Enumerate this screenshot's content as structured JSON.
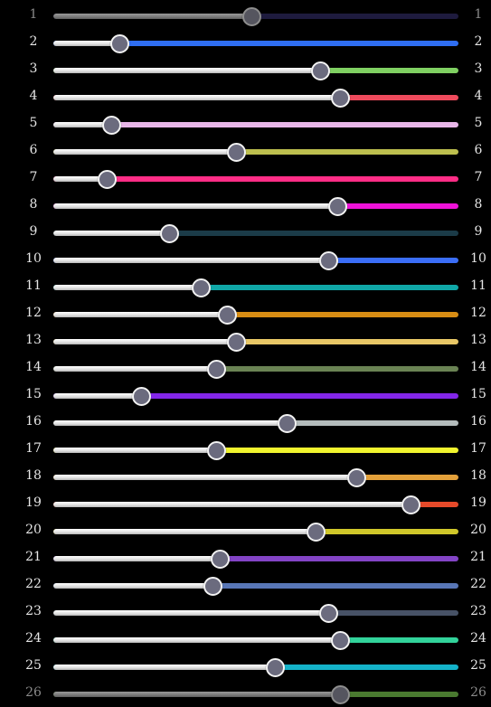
{
  "sliders": [
    {
      "label": "1",
      "value": 0.488,
      "color": "#1e1b3e",
      "state": "dim"
    },
    {
      "label": "2",
      "value": 0.163,
      "color": "#2f6ef2"
    },
    {
      "label": "3",
      "value": 0.658,
      "color": "#7fd062"
    },
    {
      "label": "4",
      "value": 0.708,
      "color": "#ee4a5c"
    },
    {
      "label": "5",
      "value": 0.143,
      "color": "#e8b6e8"
    },
    {
      "label": "6",
      "value": 0.45,
      "color": "#bdbf4e"
    },
    {
      "label": "7",
      "value": 0.132,
      "color": "#ff2d86"
    },
    {
      "label": "8",
      "value": 0.7,
      "color": "#ee12d8"
    },
    {
      "label": "9",
      "value": 0.286,
      "color": "#1b3b48"
    },
    {
      "label": "10",
      "value": 0.679,
      "color": "#3b6ef7"
    },
    {
      "label": "11",
      "value": 0.364,
      "color": "#10a7a7"
    },
    {
      "label": "12",
      "value": 0.429,
      "color": "#d88d14"
    },
    {
      "label": "13",
      "value": 0.45,
      "color": "#e8c766"
    },
    {
      "label": "14",
      "value": 0.402,
      "color": "#6a8354"
    },
    {
      "label": "15",
      "value": 0.217,
      "color": "#8326e8"
    },
    {
      "label": "16",
      "value": 0.576,
      "color": "#b4bcbc"
    },
    {
      "label": "17",
      "value": 0.402,
      "color": "#f1f52e"
    },
    {
      "label": "18",
      "value": 0.748,
      "color": "#e3a03a"
    },
    {
      "label": "19",
      "value": 0.882,
      "color": "#e64a2a"
    },
    {
      "label": "20",
      "value": 0.648,
      "color": "#d0c72a"
    },
    {
      "label": "21",
      "value": 0.411,
      "color": "#8344c6"
    },
    {
      "label": "22",
      "value": 0.392,
      "color": "#5876b6"
    },
    {
      "label": "23",
      "value": 0.679,
      "color": "#475266"
    },
    {
      "label": "24",
      "value": 0.708,
      "color": "#32d39b"
    },
    {
      "label": "25",
      "value": 0.547,
      "color": "#14b2c9"
    },
    {
      "label": "26",
      "value": 0.708,
      "color": "#4a7a30",
      "state": "dim"
    }
  ]
}
